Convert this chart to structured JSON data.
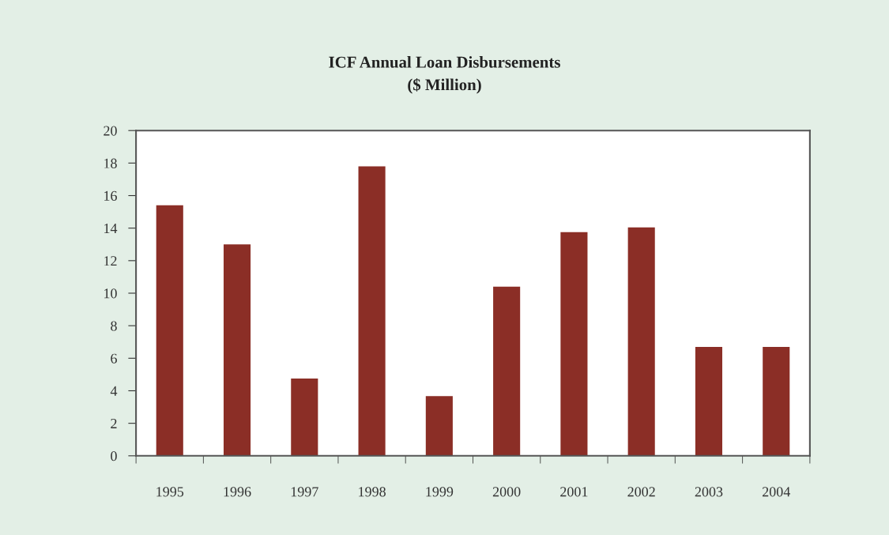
{
  "chart_data": {
    "type": "bar",
    "title": "ICF Annual Loan Disbursements\n($ Million)",
    "categories": [
      "1995",
      "1996",
      "1997",
      "1998",
      "1999",
      "2000",
      "2001",
      "2002",
      "2003",
      "2004"
    ],
    "values": [
      15.4,
      13.0,
      4.75,
      17.8,
      3.67,
      10.4,
      13.75,
      14.05,
      6.7,
      6.7
    ],
    "color": "#8b2e26",
    "ylim": [
      0,
      20
    ],
    "yticks": [
      0,
      2,
      4,
      6,
      8,
      10,
      12,
      14,
      16,
      18,
      20
    ],
    "grid": false,
    "legend": false
  }
}
